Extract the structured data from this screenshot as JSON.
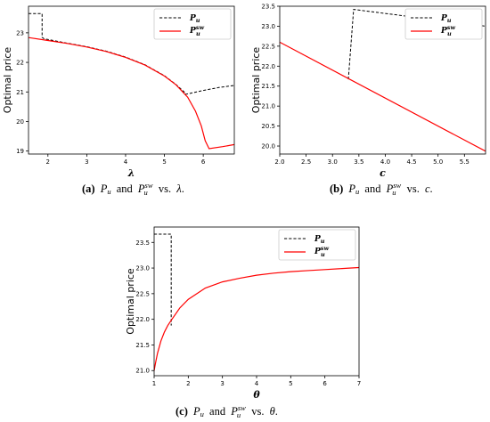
{
  "chart_data": [
    {
      "type": "line",
      "panel": "a",
      "xlabel": "λ",
      "ylabel": "Optimal price",
      "xlim": [
        1.5,
        6.8
      ],
      "ylim": [
        18.9,
        23.9
      ],
      "xticks": [
        "2",
        "3",
        "4",
        "5",
        "6"
      ],
      "yticks": [
        "19",
        "20",
        "21",
        "22",
        "23"
      ],
      "legend_position": "top-right",
      "series": [
        {
          "name": "P_u",
          "style": "dashed",
          "color": "#000000",
          "x": [
            1.5,
            1.85,
            1.85,
            1.9,
            2.5,
            3.0,
            3.5,
            4.0,
            4.5,
            5.0,
            5.3,
            5.55,
            5.55,
            6.0,
            6.4,
            6.8
          ],
          "y": [
            23.65,
            23.65,
            22.85,
            22.8,
            22.65,
            22.53,
            22.38,
            22.18,
            21.92,
            21.55,
            21.25,
            20.95,
            20.92,
            21.05,
            21.15,
            21.22
          ]
        },
        {
          "name": "P_u^sw",
          "style": "solid",
          "color": "#ff0000",
          "x": [
            1.5,
            2.0,
            2.5,
            3.0,
            3.5,
            4.0,
            4.5,
            5.0,
            5.3,
            5.6,
            5.8,
            5.95,
            6.05,
            6.15,
            6.5,
            6.8
          ],
          "y": [
            22.84,
            22.74,
            22.64,
            22.52,
            22.37,
            22.17,
            21.91,
            21.54,
            21.24,
            20.82,
            20.35,
            19.85,
            19.35,
            19.08,
            19.15,
            19.22
          ]
        }
      ]
    },
    {
      "type": "line",
      "panel": "b",
      "xlabel": "c",
      "ylabel": "Optimal price",
      "xlim": [
        2.0,
        5.9
      ],
      "ylim": [
        19.8,
        23.5
      ],
      "xticks": [
        "2.0",
        "2.5",
        "3.0",
        "3.5",
        "4.0",
        "4.5",
        "5.0",
        "5.5"
      ],
      "yticks": [
        "20.0",
        "20.5",
        "21.0",
        "21.5",
        "22.0",
        "22.5",
        "23.0",
        "23.5"
      ],
      "legend_position": "top-right",
      "series": [
        {
          "name": "P_u",
          "style": "dashed",
          "color": "#000000",
          "x": [
            3.3,
            3.4,
            5.9
          ],
          "y": [
            21.67,
            23.42,
            23.0
          ]
        },
        {
          "name": "P_u^sw",
          "style": "solid",
          "color": "#ff0000",
          "x": [
            2.0,
            5.9
          ],
          "y": [
            22.6,
            19.87
          ]
        }
      ]
    },
    {
      "type": "line",
      "panel": "c",
      "xlabel": "θ",
      "ylabel": "Optimal price",
      "xlim": [
        1.0,
        7.0
      ],
      "ylim": [
        20.9,
        23.8
      ],
      "xticks": [
        "1",
        "2",
        "3",
        "4",
        "5",
        "6",
        "7"
      ],
      "yticks": [
        "21.0",
        "21.5",
        "22.0",
        "22.5",
        "23.0",
        "23.5"
      ],
      "legend_position": "top-right",
      "series": [
        {
          "name": "P_u",
          "style": "dashed",
          "color": "#000000",
          "x": [
            1.0,
            1.5,
            1.5
          ],
          "y": [
            23.66,
            23.66,
            21.88
          ]
        },
        {
          "name": "P_u^sw",
          "style": "solid",
          "color": "#ff0000",
          "x": [
            1.0,
            1.05,
            1.1,
            1.2,
            1.3,
            1.4,
            1.5,
            1.75,
            2.0,
            2.5,
            3.0,
            3.5,
            4.0,
            4.5,
            5.0,
            5.5,
            6.0,
            6.5,
            7.0
          ],
          "y": [
            21.0,
            21.18,
            21.34,
            21.58,
            21.75,
            21.88,
            21.98,
            22.22,
            22.39,
            22.61,
            22.73,
            22.8,
            22.86,
            22.9,
            22.93,
            22.95,
            22.97,
            22.99,
            23.01
          ]
        }
      ]
    }
  ],
  "legend": {
    "p_main": "P",
    "p_sub": "u",
    "psw_sup": "sw"
  },
  "captions": [
    {
      "label": "(a)",
      "p1": "P",
      "p1_sub": "u",
      "and": "and",
      "p2": "P",
      "p2_sup": "sw",
      "p2_sub": "u",
      "vs": "vs.",
      "var": "λ",
      "end": "."
    },
    {
      "label": "(b)",
      "p1": "P",
      "p1_sub": "u",
      "and": "and",
      "p2": "P",
      "p2_sup": "sw",
      "p2_sub": "u",
      "vs": "vs.",
      "var": "c",
      "end": "."
    },
    {
      "label": "(c)",
      "p1": "P",
      "p1_sub": "u",
      "and": "and",
      "p2": "P",
      "p2_sup": "sw",
      "p2_sub": "u",
      "vs": "vs.",
      "var": "θ",
      "end": "."
    }
  ]
}
